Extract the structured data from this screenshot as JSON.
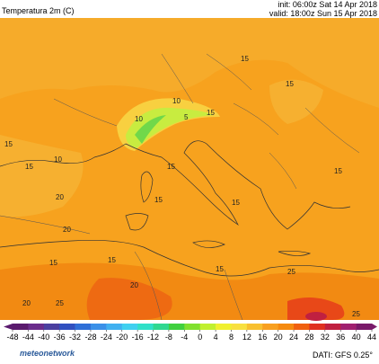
{
  "header": {
    "title": "Temperatura 2m (C)",
    "init": "init: 06:00z Sat 14 Apr 2018",
    "valid": "valid: 18:00z Sun 15 Apr 2018"
  },
  "contour_labels": [
    "15",
    "15",
    "10",
    "15",
    "10",
    "5",
    "15",
    "10",
    "15",
    "15",
    "15",
    "20",
    "15",
    "15",
    "15",
    "20",
    "20",
    "25",
    "25",
    "15",
    "15",
    "20",
    "25"
  ],
  "colorbar": {
    "ticks": [
      -48,
      -44,
      -40,
      -36,
      -32,
      -28,
      -24,
      -20,
      -16,
      -12,
      -8,
      -4,
      0,
      4,
      8,
      12,
      16,
      20,
      24,
      28,
      32,
      36,
      40,
      44
    ],
    "colors": [
      "#5a1a6e",
      "#6a2c8c",
      "#4b3fa0",
      "#3050c0",
      "#2f6fd8",
      "#3a90e8",
      "#40b0f0",
      "#40d0f0",
      "#30e0c8",
      "#30d890",
      "#40d040",
      "#80e030",
      "#c0f030",
      "#f0f030",
      "#f8e040",
      "#f8c030",
      "#f8a020",
      "#f58a10",
      "#f06010",
      "#e03020",
      "#c02040",
      "#a02070",
      "#7a1a6a"
    ]
  },
  "footer": {
    "brand": "meteonetwork",
    "source": "DATI: GFS 0.25°"
  }
}
